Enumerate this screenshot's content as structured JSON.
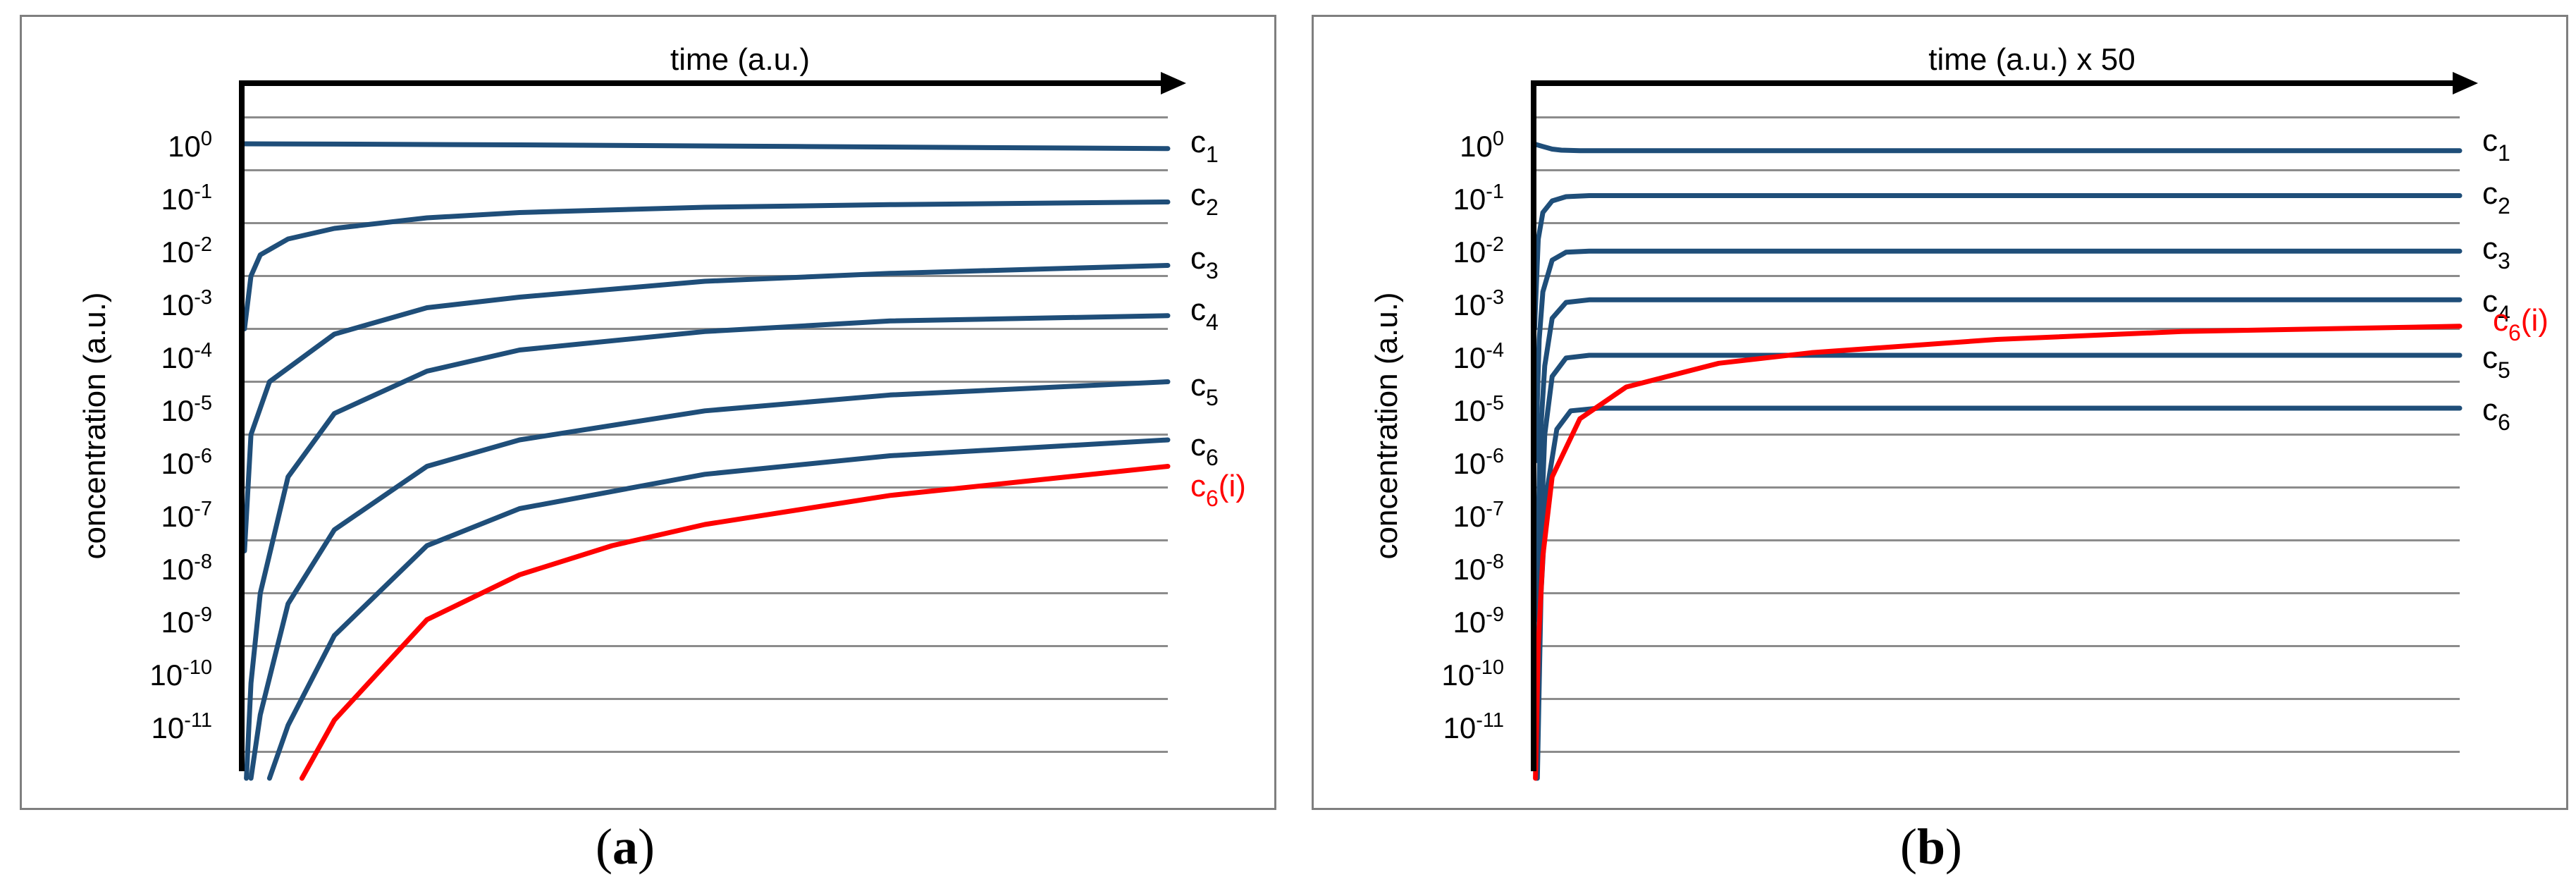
{
  "chart_data": [
    {
      "type": "line",
      "panel": "(a)",
      "x_title": "time (a.u.)",
      "ylabel": "concentration (a.u.)",
      "y_scale": "log",
      "ylim_log10": [
        -12,
        0.5
      ],
      "y_tick_labels": [
        "10^0",
        "10^-1",
        "10^-2",
        "10^-3",
        "10^-4",
        "10^-5",
        "10^-6",
        "10^-7",
        "10^-8",
        "10^-9",
        "10^-10",
        "10^-11"
      ],
      "grid": true,
      "series": [
        {
          "name": "c1",
          "color": "#1f4e79",
          "x": [
            0,
            0.1,
            0.3,
            0.6,
            1.0
          ],
          "log10_y": [
            0.0,
            -0.005,
            -0.02,
            -0.05,
            -0.09
          ]
        },
        {
          "name": "c2",
          "color": "#1f4e79",
          "x": [
            0.003,
            0.01,
            0.02,
            0.05,
            0.1,
            0.2,
            0.3,
            0.5,
            0.7,
            1.0
          ],
          "log10_y": [
            -3.5,
            -2.5,
            -2.1,
            -1.8,
            -1.6,
            -1.4,
            -1.3,
            -1.2,
            -1.15,
            -1.1
          ]
        },
        {
          "name": "c3",
          "color": "#1f4e79",
          "x": [
            0.003,
            0.01,
            0.03,
            0.1,
            0.2,
            0.3,
            0.5,
            0.7,
            1.0
          ],
          "log10_y": [
            -7.7,
            -5.5,
            -4.5,
            -3.6,
            -3.1,
            -2.9,
            -2.6,
            -2.45,
            -2.3
          ]
        },
        {
          "name": "c4",
          "color": "#1f4e79",
          "x": [
            0.005,
            0.01,
            0.02,
            0.05,
            0.1,
            0.2,
            0.3,
            0.5,
            0.7,
            1.0
          ],
          "log10_y": [
            -12.0,
            -10.2,
            -8.5,
            -6.3,
            -5.1,
            -4.3,
            -3.9,
            -3.55,
            -3.35,
            -3.25
          ]
        },
        {
          "name": "c5",
          "color": "#1f4e79",
          "x": [
            0.01,
            0.02,
            0.05,
            0.1,
            0.2,
            0.3,
            0.5,
            0.7,
            1.0
          ],
          "log10_y": [
            -12.0,
            -10.8,
            -8.7,
            -7.3,
            -6.1,
            -5.6,
            -5.05,
            -4.75,
            -4.5
          ]
        },
        {
          "name": "c6",
          "color": "#1f4e79",
          "x": [
            0.03,
            0.05,
            0.1,
            0.2,
            0.3,
            0.5,
            0.7,
            1.0
          ],
          "log10_y": [
            -12.0,
            -11.0,
            -9.3,
            -7.6,
            -6.9,
            -6.25,
            -5.9,
            -5.6
          ]
        },
        {
          "name": "c6(i)",
          "color": "#ff0000",
          "x": [
            0.065,
            0.1,
            0.2,
            0.3,
            0.4,
            0.5,
            0.7,
            1.0
          ],
          "log10_y": [
            -12.0,
            -10.9,
            -9.0,
            -8.15,
            -7.6,
            -7.2,
            -6.65,
            -6.1
          ]
        }
      ],
      "legend_labels": [
        {
          "label": "c1",
          "base": "c",
          "sub": "1",
          "red": false
        },
        {
          "label": "c2",
          "base": "c",
          "sub": "2",
          "red": false
        },
        {
          "label": "c3",
          "base": "c",
          "sub": "3",
          "red": false
        },
        {
          "label": "c4",
          "base": "c",
          "sub": "4",
          "red": false
        },
        {
          "label": "c5",
          "base": "c",
          "sub": "5",
          "red": false
        },
        {
          "label": "c6",
          "base": "c",
          "sub": "6",
          "red": false
        },
        {
          "label": "c6(i)",
          "base": "c",
          "sub": "6",
          "suffix": "(i)",
          "red": true
        }
      ]
    },
    {
      "type": "line",
      "panel": "(b)",
      "x_title": "time (a.u.) x 50",
      "ylabel": "concentration (a.u.)",
      "y_scale": "log",
      "ylim_log10": [
        -12,
        0.5
      ],
      "y_tick_labels": [
        "10^0",
        "10^-1",
        "10^-2",
        "10^-3",
        "10^-4",
        "10^-5",
        "10^-6",
        "10^-7",
        "10^-8",
        "10^-9",
        "10^-10",
        "10^-11"
      ],
      "grid": true,
      "series": [
        {
          "name": "c1",
          "color": "#1f4e79",
          "x": [
            0,
            0.01,
            0.02,
            0.03,
            0.05,
            1.0
          ],
          "log10_y": [
            0.0,
            -0.05,
            -0.1,
            -0.12,
            -0.13,
            -0.13
          ]
        },
        {
          "name": "c2",
          "color": "#1f4e79",
          "x": [
            0.001,
            0.005,
            0.01,
            0.02,
            0.035,
            0.06,
            1.0
          ],
          "log10_y": [
            -3.5,
            -1.8,
            -1.3,
            -1.08,
            -1.0,
            -0.98,
            -0.98
          ]
        },
        {
          "name": "c3",
          "color": "#1f4e79",
          "x": [
            0.002,
            0.006,
            0.01,
            0.02,
            0.035,
            0.06,
            1.0
          ],
          "log10_y": [
            -6.0,
            -3.7,
            -2.8,
            -2.2,
            -2.05,
            -2.03,
            -2.03
          ]
        },
        {
          "name": "c4",
          "color": "#1f4e79",
          "x": [
            0.003,
            0.007,
            0.012,
            0.02,
            0.035,
            0.06,
            1.0
          ],
          "log10_y": [
            -9.0,
            -5.6,
            -4.2,
            -3.3,
            -3.0,
            -2.95,
            -2.95
          ]
        },
        {
          "name": "c5",
          "color": "#1f4e79",
          "x": [
            0.003,
            0.007,
            0.012,
            0.02,
            0.035,
            0.06,
            1.0
          ],
          "log10_y": [
            -12.0,
            -7.8,
            -5.5,
            -4.4,
            -4.05,
            -4.0,
            -4.0
          ]
        },
        {
          "name": "c6",
          "color": "#1f4e79",
          "x": [
            0.004,
            0.008,
            0.014,
            0.025,
            0.04,
            0.07,
            1.0
          ],
          "log10_y": [
            -12.0,
            -8.5,
            -6.6,
            -5.4,
            -5.05,
            -5.0,
            -5.0
          ]
        },
        {
          "name": "c6(i)",
          "color": "#ff0000",
          "x": [
            0.002,
            0.005,
            0.01,
            0.02,
            0.05,
            0.1,
            0.2,
            0.3,
            0.5,
            0.7,
            1.0
          ],
          "log10_y": [
            -12.0,
            -9.5,
            -7.8,
            -6.3,
            -5.2,
            -4.6,
            -4.15,
            -3.95,
            -3.7,
            -3.55,
            -3.45
          ]
        }
      ],
      "legend_labels": [
        {
          "label": "c1",
          "base": "c",
          "sub": "1",
          "red": false
        },
        {
          "label": "c2",
          "base": "c",
          "sub": "2",
          "red": false
        },
        {
          "label": "c3",
          "base": "c",
          "sub": "3",
          "red": false
        },
        {
          "label": "c4",
          "base": "c",
          "sub": "4",
          "red": false
        },
        {
          "label": "c6(i)",
          "base": "c",
          "sub": "6",
          "suffix": "(i)",
          "red": true
        },
        {
          "label": "c5",
          "base": "c",
          "sub": "5",
          "red": false
        },
        {
          "label": "c6",
          "base": "c",
          "sub": "6",
          "red": false
        }
      ]
    }
  ],
  "captions": {
    "a": "a",
    "b": "b"
  }
}
